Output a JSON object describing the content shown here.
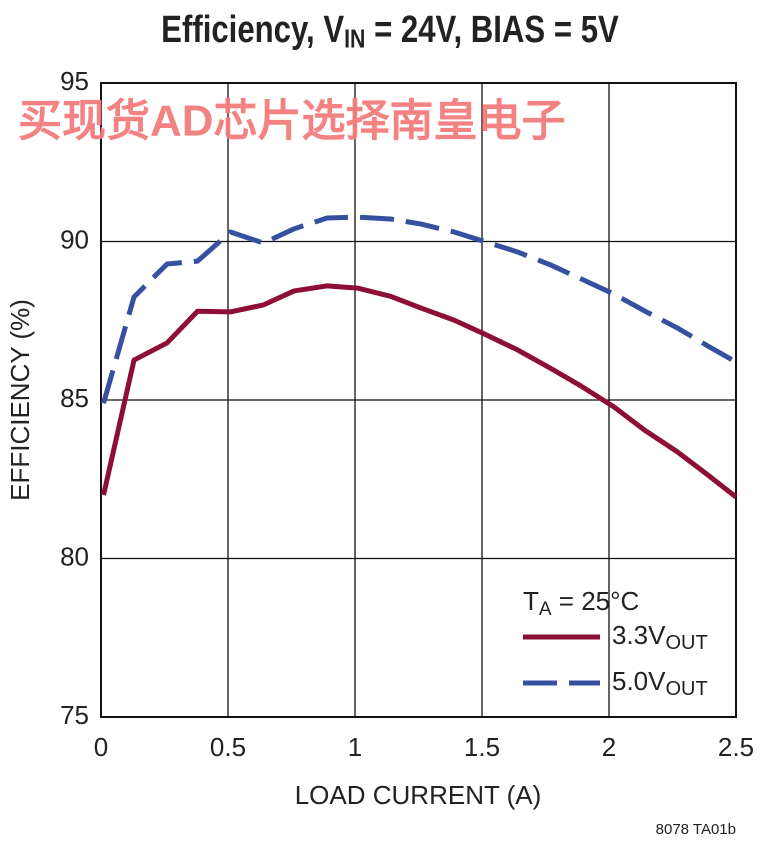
{
  "chart_data": {
    "type": "line",
    "title_parts": [
      "Efficiency, V",
      "IN",
      " = 24V, BIAS = 5V"
    ],
    "watermark": "买现货AD芯片选择南皇电子",
    "x_label": "LOAD CURRENT (A)",
    "y_label": "EFFICIENCY (%)",
    "footnote": "8078 TA01b",
    "legend_title_parts": [
      "T",
      "A",
      " = 25°C"
    ],
    "legend": "lower right",
    "grid": true,
    "x": [
      0.01,
      0.13,
      0.26,
      0.38,
      0.51,
      0.64,
      0.76,
      0.89,
      1.01,
      1.14,
      1.26,
      1.39,
      1.51,
      1.64,
      1.77,
      1.89,
      2.02,
      2.14,
      2.27,
      2.39,
      2.5
    ],
    "series": [
      {
        "name": "3.3V",
        "name_sub": "OUT",
        "color": "#8e0f35",
        "dashed": false,
        "values": [
          82.0,
          86.26,
          86.8,
          87.8,
          87.78,
          88.0,
          88.44,
          88.6,
          88.53,
          88.27,
          87.9,
          87.52,
          87.08,
          86.58,
          86.0,
          85.44,
          84.78,
          84.05,
          83.36,
          82.63,
          81.94
        ]
      },
      {
        "name": "5.0V",
        "name_sub": "OUT",
        "color": "#3650a0",
        "dashed": true,
        "values": [
          84.9,
          88.25,
          89.29,
          89.38,
          90.3,
          89.95,
          90.4,
          90.74,
          90.77,
          90.71,
          90.55,
          90.3,
          90.0,
          89.67,
          89.26,
          88.82,
          88.34,
          87.81,
          87.27,
          86.7,
          86.2
        ]
      }
    ],
    "xlim": [
      0,
      2.5
    ],
    "xticks": [
      0,
      0.5,
      1,
      1.5,
      2,
      2.5
    ],
    "ylim": [
      75,
      95
    ],
    "yticks": [
      75,
      80,
      85,
      90,
      95
    ]
  }
}
